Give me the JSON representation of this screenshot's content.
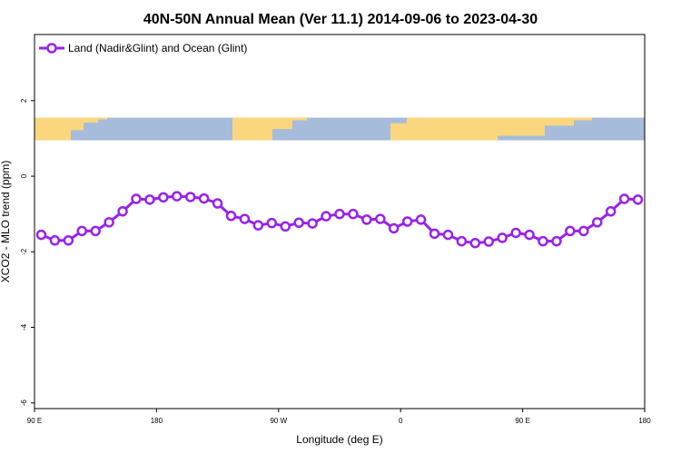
{
  "chart_data": {
    "type": "line",
    "title": "40N-50N Annual Mean (Ver 11.1)   2014-09-06 to 2023-04-30",
    "xlabel": "Longitude (deg E)",
    "ylabel": "XCO2 - MLO trend (ppm)",
    "xlim": [
      90,
      450
    ],
    "ylim": [
      -6.15,
      3.75
    ],
    "x_ticks": [
      {
        "value": 90,
        "label": "90 E"
      },
      {
        "value": 162,
        "label": "180"
      },
      {
        "value": 234,
        "label": "90 W"
      },
      {
        "value": 306,
        "label": "0"
      },
      {
        "value": 378,
        "label": "90 E"
      },
      {
        "value": 450,
        "label": "180"
      }
    ],
    "y_ticks": [
      {
        "value": 2,
        "label": "2"
      },
      {
        "value": 0,
        "label": "0"
      },
      {
        "value": -2,
        "label": "-2"
      },
      {
        "value": -4,
        "label": "-4"
      },
      {
        "value": -6,
        "label": "-6"
      }
    ],
    "grid": false,
    "legend_position": "top-left",
    "map_band": {
      "y_top": 1.55,
      "y_bottom": 0.95,
      "land_color": "#fad77f",
      "ocean_color": "#a7bcdb"
    },
    "series": [
      {
        "name": "Land (Nadir&Glint) and Ocean (Glint)",
        "color": "#9922e8",
        "x": [
          94,
          102,
          110,
          118,
          126,
          134,
          142,
          150,
          158,
          166,
          174,
          182,
          190,
          198,
          206,
          214,
          222,
          230,
          238,
          246,
          254,
          262,
          270,
          278,
          286,
          294,
          302,
          310,
          318,
          326,
          334,
          342,
          350,
          358,
          366,
          374,
          382,
          390,
          398,
          406,
          414,
          422,
          430,
          438,
          446
        ],
        "values": [
          -1.55,
          -1.7,
          -1.7,
          -1.45,
          -1.45,
          -1.22,
          -0.93,
          -0.6,
          -0.62,
          -0.56,
          -0.53,
          -0.55,
          -0.59,
          -0.72,
          -1.05,
          -1.13,
          -1.3,
          -1.24,
          -1.33,
          -1.23,
          -1.25,
          -1.06,
          -1.0,
          -1.0,
          -1.15,
          -1.13,
          -1.38,
          -1.2,
          -1.15,
          -1.52,
          -1.55,
          -1.72,
          -1.77,
          -1.73,
          -1.63,
          -1.5,
          -1.55,
          -1.72,
          -1.72,
          -1.45,
          -1.45,
          -1.22,
          -0.93,
          -0.6,
          -0.62
        ]
      }
    ]
  }
}
